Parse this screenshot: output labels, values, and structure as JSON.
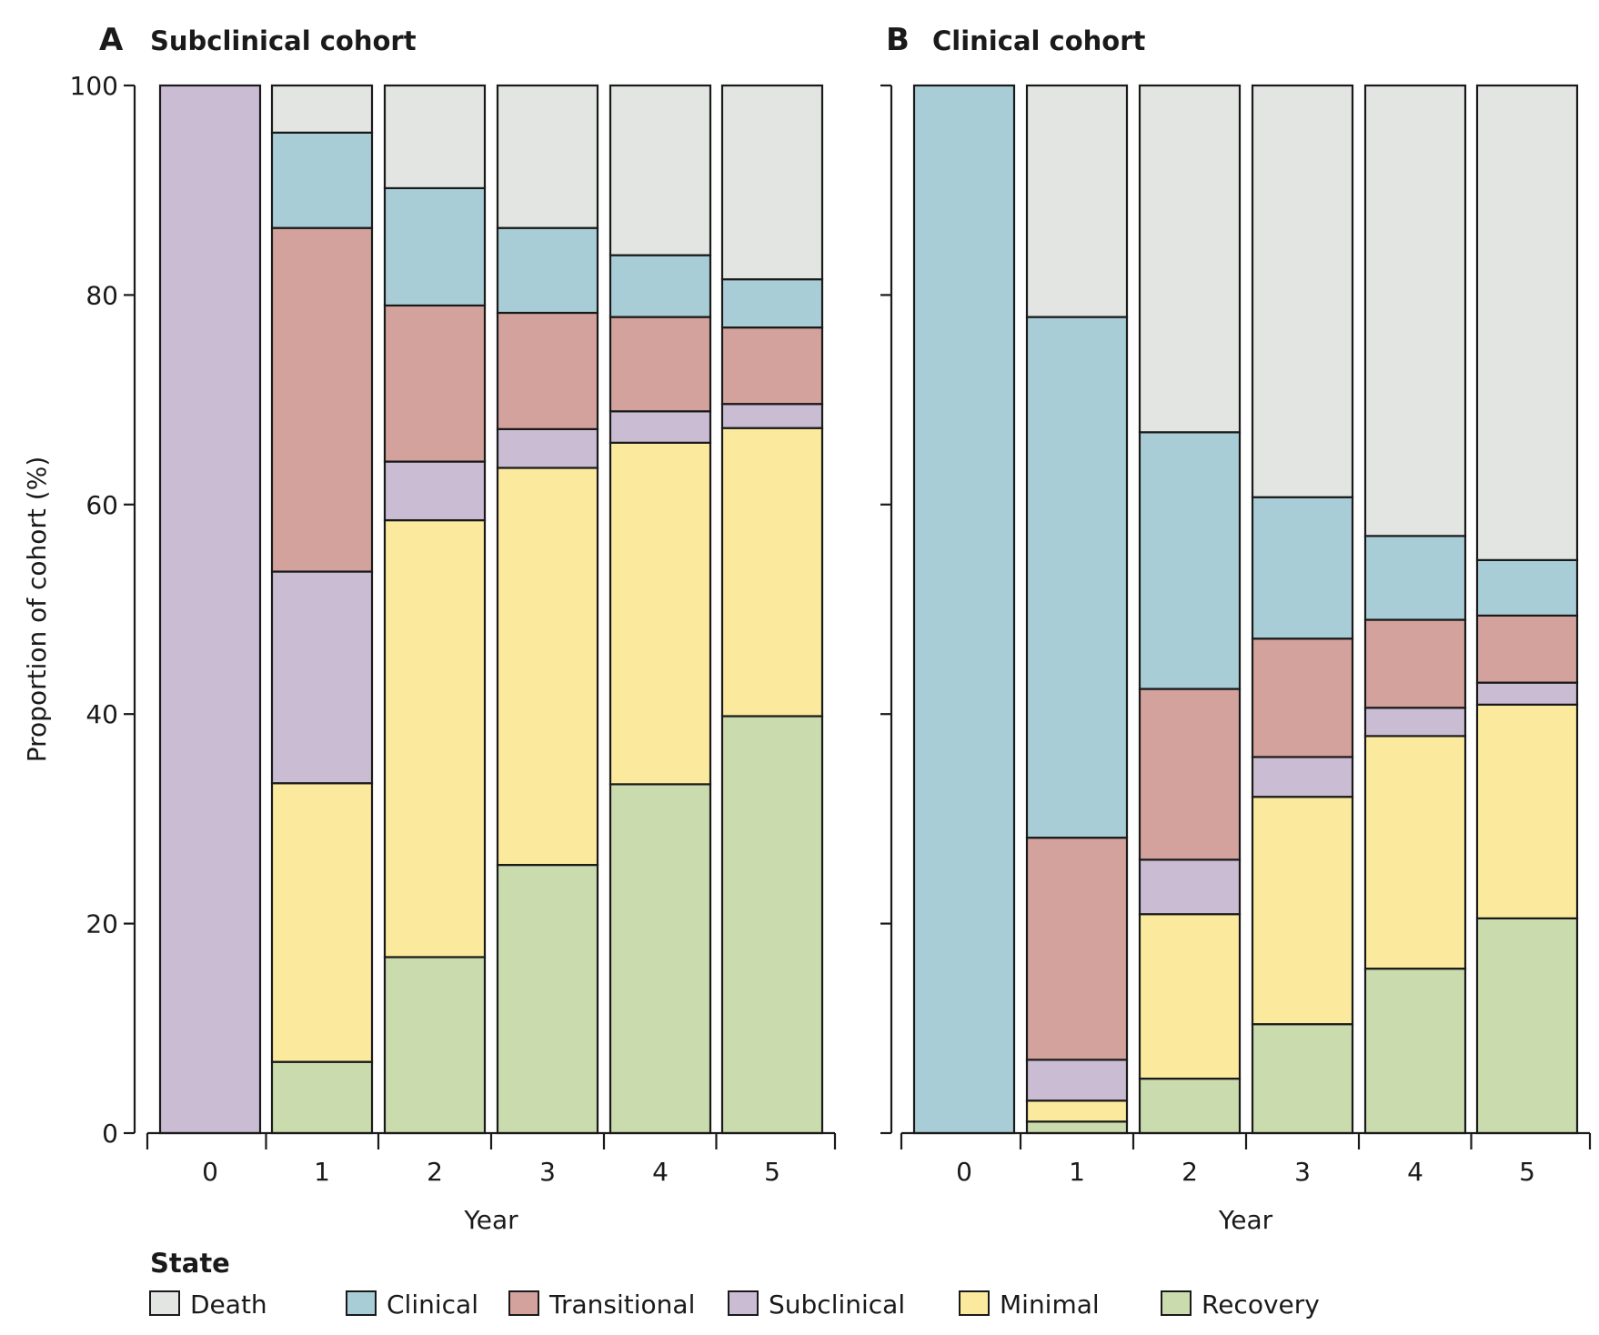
{
  "legend": {
    "title": "State",
    "placement": "bottom",
    "entries": [
      {
        "key": "death",
        "label": "Death",
        "color": "#e3e5e3"
      },
      {
        "key": "clinical",
        "label": "Clinical",
        "color": "#a8cdd6"
      },
      {
        "key": "transitional",
        "label": "Transitional",
        "color": "#d3a29c"
      },
      {
        "key": "subclinical",
        "label": "Subclinical",
        "color": "#c9bcd3"
      },
      {
        "key": "minimal",
        "label": "Minimal",
        "color": "#fbea9e"
      },
      {
        "key": "recovery",
        "label": "Recovery",
        "color": "#cadbad"
      }
    ]
  },
  "chart_data": [
    {
      "type": "bar",
      "stacked": true,
      "panel_letter": "A",
      "title": "Subclinical cohort",
      "xlabel": "Year",
      "ylabel": "Proportion of cohort (%)",
      "ylim": [
        0,
        100
      ],
      "yticks": [
        0,
        20,
        40,
        60,
        80,
        100
      ],
      "grid": false,
      "categories": [
        "0",
        "1",
        "2",
        "3",
        "4",
        "5"
      ],
      "series": [
        {
          "name": "Recovery",
          "color": "#cadbad",
          "values": [
            0,
            6.8,
            16.8,
            25.6,
            33.3,
            39.8
          ]
        },
        {
          "name": "Minimal",
          "color": "#fbea9e",
          "values": [
            0,
            26.6,
            41.7,
            37.9,
            32.6,
            27.5
          ]
        },
        {
          "name": "Subclinical",
          "color": "#c9bcd3",
          "values": [
            100,
            20.2,
            5.6,
            3.7,
            3.0,
            2.3
          ]
        },
        {
          "name": "Transitional",
          "color": "#d3a29c",
          "values": [
            0,
            32.8,
            14.9,
            11.1,
            9.0,
            7.3
          ]
        },
        {
          "name": "Clinical",
          "color": "#a8cdd6",
          "values": [
            0,
            9.1,
            11.2,
            8.1,
            5.9,
            4.6
          ]
        },
        {
          "name": "Death",
          "color": "#e3e5e3",
          "values": [
            0,
            4.5,
            9.8,
            13.6,
            16.2,
            18.5
          ]
        }
      ]
    },
    {
      "type": "bar",
      "stacked": true,
      "panel_letter": "B",
      "title": "Clinical cohort",
      "xlabel": "Year",
      "ylabel": "",
      "ylim": [
        0,
        100
      ],
      "yticks": [
        0,
        20,
        40,
        60,
        80,
        100
      ],
      "grid": false,
      "categories": [
        "0",
        "1",
        "2",
        "3",
        "4",
        "5"
      ],
      "series": [
        {
          "name": "Recovery",
          "color": "#cadbad",
          "values": [
            0,
            1.1,
            5.2,
            10.4,
            15.7,
            20.5
          ]
        },
        {
          "name": "Minimal",
          "color": "#fbea9e",
          "values": [
            0,
            2.0,
            15.7,
            21.7,
            22.2,
            20.4
          ]
        },
        {
          "name": "Subclinical",
          "color": "#c9bcd3",
          "values": [
            0,
            3.9,
            5.2,
            3.8,
            2.7,
            2.1
          ]
        },
        {
          "name": "Transitional",
          "color": "#d3a29c",
          "values": [
            0,
            21.2,
            16.3,
            11.3,
            8.4,
            6.4
          ]
        },
        {
          "name": "Clinical",
          "color": "#a8cdd6",
          "values": [
            100,
            49.7,
            24.5,
            13.5,
            8.0,
            5.3
          ]
        },
        {
          "name": "Death",
          "color": "#e3e5e3",
          "values": [
            0,
            22.1,
            33.1,
            39.3,
            43.0,
            45.3
          ]
        }
      ]
    }
  ]
}
